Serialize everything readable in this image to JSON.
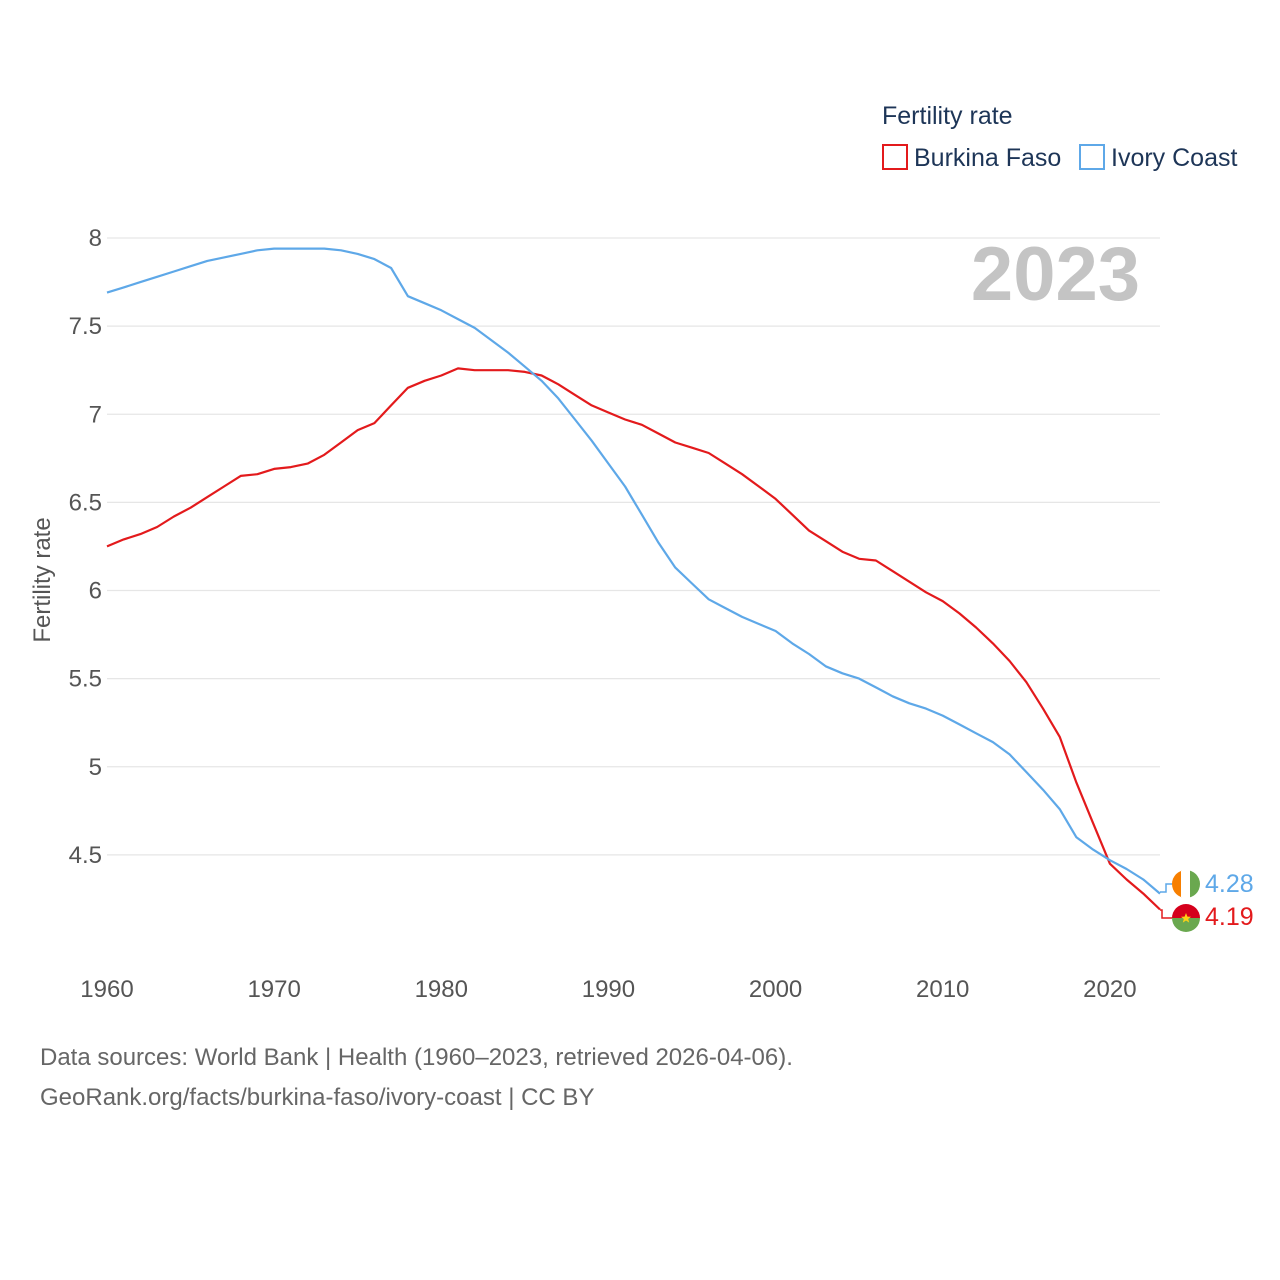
{
  "legend": {
    "title": "Fertility rate"
  },
  "year_label": "2023",
  "footer": {
    "line1": "Data sources: World Bank | Health (1960–2023, retrieved 2026-04-06).",
    "line2": "GeoRank.org/facts/burkina-faso/ivory-coast | CC BY"
  },
  "chart_data": {
    "type": "line",
    "title": "Fertility rate",
    "xlabel": "",
    "ylabel": "Fertility rate",
    "xlim": [
      1960,
      2023
    ],
    "ylim": [
      4.0,
      8.0
    ],
    "x_ticks": [
      1960,
      1970,
      1980,
      1990,
      2000,
      2010,
      2020
    ],
    "y_ticks": [
      4.5,
      5,
      5.5,
      6,
      6.5,
      7,
      7.5,
      8
    ],
    "y_tick_labels": [
      "4.5",
      "5",
      "5.5",
      "6",
      "6.5",
      "7",
      "7.5",
      "8"
    ],
    "x": [
      1960,
      1961,
      1962,
      1963,
      1964,
      1965,
      1966,
      1967,
      1968,
      1969,
      1970,
      1971,
      1972,
      1973,
      1974,
      1975,
      1976,
      1977,
      1978,
      1979,
      1980,
      1981,
      1982,
      1983,
      1984,
      1985,
      1986,
      1987,
      1988,
      1989,
      1990,
      1991,
      1992,
      1993,
      1994,
      1995,
      1996,
      1997,
      1998,
      1999,
      2000,
      2001,
      2002,
      2003,
      2004,
      2005,
      2006,
      2007,
      2008,
      2009,
      2010,
      2011,
      2012,
      2013,
      2014,
      2015,
      2016,
      2017,
      2018,
      2019,
      2020,
      2021,
      2022,
      2023
    ],
    "series": [
      {
        "name": "Burkina Faso",
        "color": "#e31a1c",
        "end_label": "4.19",
        "values": [
          6.25,
          6.29,
          6.32,
          6.36,
          6.42,
          6.47,
          6.53,
          6.59,
          6.65,
          6.66,
          6.69,
          6.7,
          6.72,
          6.77,
          6.84,
          6.91,
          6.95,
          7.05,
          7.15,
          7.19,
          7.22,
          7.26,
          7.25,
          7.25,
          7.25,
          7.24,
          7.22,
          7.17,
          7.11,
          7.05,
          7.01,
          6.97,
          6.94,
          6.89,
          6.84,
          6.81,
          6.78,
          6.72,
          6.66,
          6.59,
          6.52,
          6.43,
          6.34,
          6.28,
          6.22,
          6.18,
          6.17,
          6.11,
          6.05,
          5.99,
          5.94,
          5.87,
          5.79,
          5.7,
          5.6,
          5.48,
          5.33,
          5.17,
          4.91,
          4.68,
          4.45,
          4.36,
          4.28,
          4.19
        ]
      },
      {
        "name": "Ivory Coast",
        "color": "#5ea8e8",
        "end_label": "4.28",
        "values": [
          7.69,
          7.72,
          7.75,
          7.78,
          7.81,
          7.84,
          7.87,
          7.89,
          7.91,
          7.93,
          7.94,
          7.94,
          7.94,
          7.94,
          7.93,
          7.91,
          7.88,
          7.83,
          7.67,
          7.63,
          7.59,
          7.54,
          7.49,
          7.42,
          7.35,
          7.27,
          7.19,
          7.09,
          6.97,
          6.85,
          6.72,
          6.59,
          6.43,
          6.27,
          6.13,
          6.04,
          5.95,
          5.9,
          5.85,
          5.81,
          5.77,
          5.7,
          5.64,
          5.57,
          5.53,
          5.5,
          5.45,
          5.4,
          5.36,
          5.33,
          5.29,
          5.24,
          5.19,
          5.14,
          5.07,
          4.97,
          4.87,
          4.76,
          4.6,
          4.53,
          4.47,
          4.42,
          4.36,
          4.28
        ]
      }
    ]
  }
}
